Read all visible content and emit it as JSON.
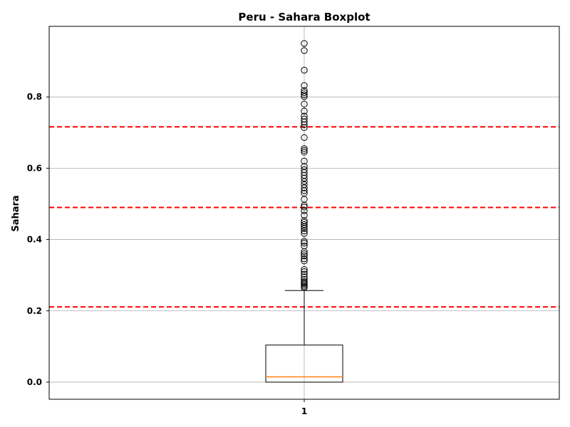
{
  "chart_data": {
    "type": "box",
    "title": "Peru - Sahara Boxplot",
    "xlabel": "",
    "ylabel": "Sahara",
    "categories": [
      "1"
    ],
    "ylim": [
      -0.048,
      0.998
    ],
    "yticks": [
      "0.0",
      "0.2",
      "0.4",
      "0.6",
      "0.8"
    ],
    "grid": true,
    "box": {
      "whisker_low": 0.0,
      "q1": 0.0,
      "median": 0.015,
      "q3": 0.104,
      "whisker_high": 0.257
    },
    "outliers": [
      0.265,
      0.268,
      0.272,
      0.276,
      0.279,
      0.282,
      0.288,
      0.295,
      0.303,
      0.31,
      0.316,
      0.34,
      0.346,
      0.354,
      0.36,
      0.366,
      0.382,
      0.39,
      0.395,
      0.417,
      0.424,
      0.431,
      0.436,
      0.442,
      0.448,
      0.453,
      0.468,
      0.481,
      0.491,
      0.496,
      0.513,
      0.53,
      0.537,
      0.545,
      0.554,
      0.563,
      0.572,
      0.58,
      0.588,
      0.596,
      0.605,
      0.62,
      0.645,
      0.65,
      0.655,
      0.686,
      0.714,
      0.722,
      0.73,
      0.738,
      0.746,
      0.76,
      0.78,
      0.801,
      0.806,
      0.812,
      0.818,
      0.832,
      0.875,
      0.93,
      0.95
    ],
    "reference_lines": [
      0.716,
      0.49,
      0.211
    ],
    "colors": {
      "box": "#000000",
      "median": "#ff7f0e",
      "reference": "#ff0000",
      "grid": "#b0b0b0"
    }
  }
}
